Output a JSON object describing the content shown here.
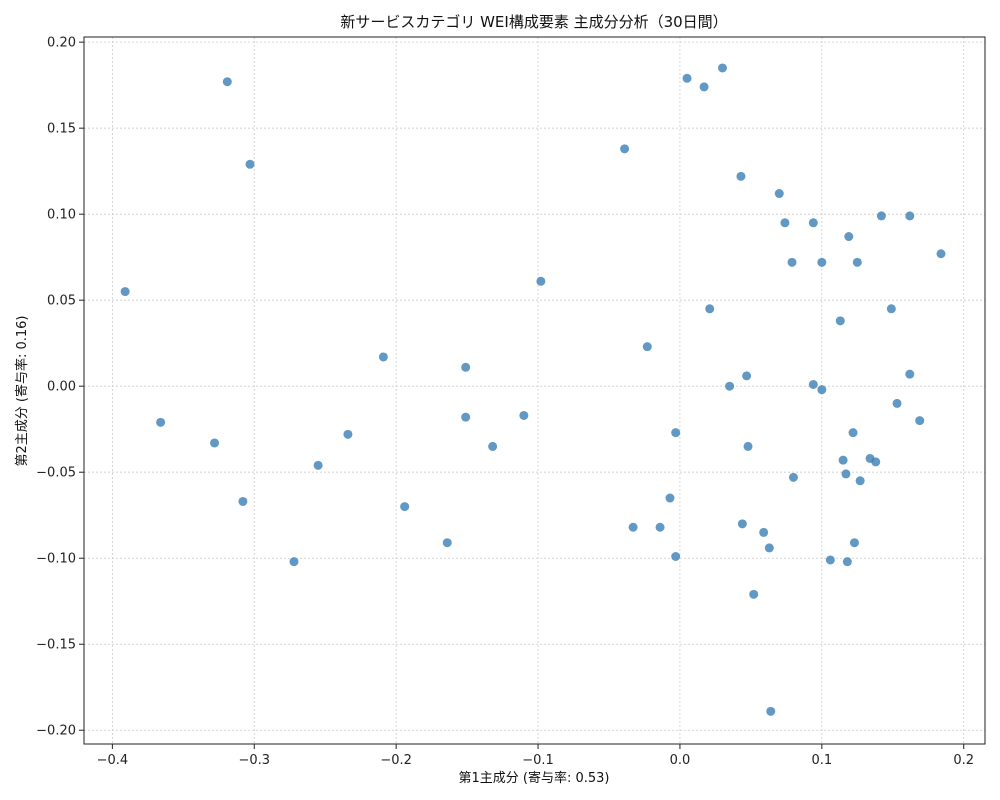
{
  "chart_data": {
    "type": "scatter",
    "title": "新サービスカテゴリ WEI構成要素 主成分分析（30日間）",
    "xlabel": "第1主成分 (寄与率: 0.53)",
    "ylabel": "第2主成分 (寄与率: 0.16)",
    "xlim": [
      -0.42,
      0.215
    ],
    "ylim": [
      -0.208,
      0.203
    ],
    "xticks": [
      -0.4,
      -0.3,
      -0.2,
      -0.1,
      0.0,
      0.1,
      0.2
    ],
    "xtick_labels": [
      "−0.4",
      "−0.3",
      "−0.2",
      "−0.1",
      "0.0",
      "0.1",
      "0.2"
    ],
    "yticks": [
      -0.2,
      -0.15,
      -0.1,
      -0.05,
      0.0,
      0.05,
      0.1,
      0.15,
      0.2
    ],
    "ytick_labels": [
      "−0.20",
      "−0.15",
      "−0.10",
      "−0.05",
      "0.00",
      "0.05",
      "0.10",
      "0.15",
      "0.20"
    ],
    "grid": true,
    "marker_color": "#3a7fb5",
    "points": [
      {
        "x": -0.391,
        "y": 0.055
      },
      {
        "x": -0.366,
        "y": -0.021
      },
      {
        "x": -0.328,
        "y": -0.033
      },
      {
        "x": -0.319,
        "y": 0.177
      },
      {
        "x": -0.308,
        "y": -0.067
      },
      {
        "x": -0.303,
        "y": 0.129
      },
      {
        "x": -0.272,
        "y": -0.102
      },
      {
        "x": -0.255,
        "y": -0.046
      },
      {
        "x": -0.234,
        "y": -0.028
      },
      {
        "x": -0.209,
        "y": 0.017
      },
      {
        "x": -0.194,
        "y": -0.07
      },
      {
        "x": -0.164,
        "y": -0.091
      },
      {
        "x": -0.151,
        "y": 0.011
      },
      {
        "x": -0.151,
        "y": -0.018
      },
      {
        "x": -0.132,
        "y": -0.035
      },
      {
        "x": -0.11,
        "y": -0.017
      },
      {
        "x": -0.098,
        "y": 0.061
      },
      {
        "x": -0.039,
        "y": 0.138
      },
      {
        "x": -0.033,
        "y": -0.082
      },
      {
        "x": -0.023,
        "y": 0.023
      },
      {
        "x": -0.014,
        "y": -0.082
      },
      {
        "x": -0.007,
        "y": -0.065
      },
      {
        "x": -0.003,
        "y": -0.027
      },
      {
        "x": -0.003,
        "y": -0.099
      },
      {
        "x": 0.005,
        "y": 0.179
      },
      {
        "x": 0.017,
        "y": 0.174
      },
      {
        "x": 0.021,
        "y": 0.045
      },
      {
        "x": 0.03,
        "y": 0.185
      },
      {
        "x": 0.035,
        "y": 0.0
      },
      {
        "x": 0.043,
        "y": 0.122
      },
      {
        "x": 0.044,
        "y": -0.08
      },
      {
        "x": 0.047,
        "y": 0.006
      },
      {
        "x": 0.048,
        "y": -0.035
      },
      {
        "x": 0.052,
        "y": -0.121
      },
      {
        "x": 0.059,
        "y": -0.085
      },
      {
        "x": 0.063,
        "y": -0.094
      },
      {
        "x": 0.064,
        "y": -0.189
      },
      {
        "x": 0.07,
        "y": 0.112
      },
      {
        "x": 0.074,
        "y": 0.095
      },
      {
        "x": 0.079,
        "y": 0.072
      },
      {
        "x": 0.08,
        "y": -0.053
      },
      {
        "x": 0.094,
        "y": 0.095
      },
      {
        "x": 0.094,
        "y": 0.001
      },
      {
        "x": 0.1,
        "y": 0.072
      },
      {
        "x": 0.1,
        "y": -0.002
      },
      {
        "x": 0.106,
        "y": -0.101
      },
      {
        "x": 0.113,
        "y": 0.038
      },
      {
        "x": 0.115,
        "y": -0.043
      },
      {
        "x": 0.117,
        "y": -0.051
      },
      {
        "x": 0.118,
        "y": -0.102
      },
      {
        "x": 0.119,
        "y": 0.087
      },
      {
        "x": 0.122,
        "y": -0.027
      },
      {
        "x": 0.123,
        "y": -0.091
      },
      {
        "x": 0.125,
        "y": 0.072
      },
      {
        "x": 0.127,
        "y": -0.055
      },
      {
        "x": 0.134,
        "y": -0.042
      },
      {
        "x": 0.138,
        "y": -0.044
      },
      {
        "x": 0.142,
        "y": 0.099
      },
      {
        "x": 0.149,
        "y": 0.045
      },
      {
        "x": 0.153,
        "y": -0.01
      },
      {
        "x": 0.162,
        "y": 0.007
      },
      {
        "x": 0.162,
        "y": 0.099
      },
      {
        "x": 0.169,
        "y": -0.02
      },
      {
        "x": 0.184,
        "y": 0.077
      }
    ]
  }
}
